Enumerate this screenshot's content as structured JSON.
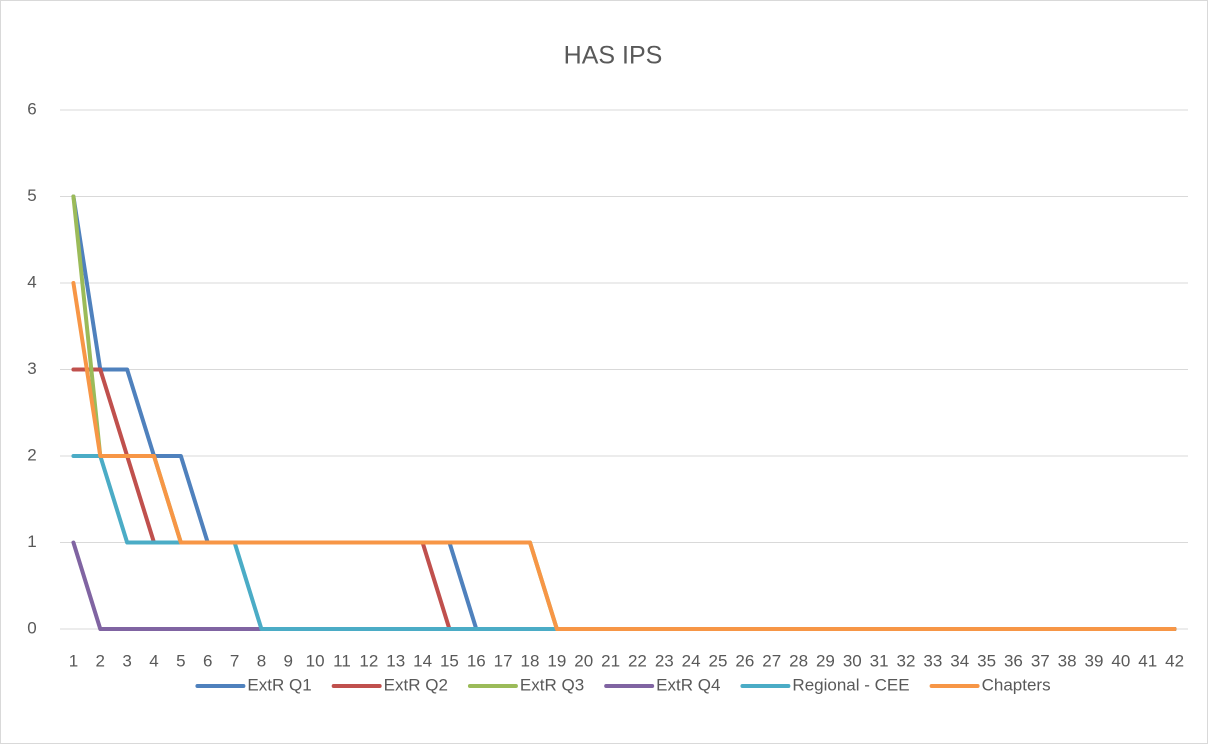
{
  "chart_data": {
    "type": "line",
    "title": "HAS IPS",
    "categories": [
      1,
      2,
      3,
      4,
      5,
      6,
      7,
      8,
      9,
      10,
      11,
      12,
      13,
      14,
      15,
      16,
      17,
      18,
      19,
      20,
      21,
      22,
      23,
      24,
      25,
      26,
      27,
      28,
      29,
      30,
      31,
      32,
      33,
      34,
      35,
      36,
      37,
      38,
      39,
      40,
      41,
      42
    ],
    "series": [
      {
        "name": "ExtR Q1",
        "color": "#4f81bd",
        "values": [
          5,
          3,
          3,
          2,
          2,
          1,
          1,
          1,
          1,
          1,
          1,
          1,
          1,
          1,
          1,
          0,
          0,
          0,
          0,
          0,
          0,
          0,
          0,
          0,
          0,
          0,
          0,
          0,
          0,
          0,
          0,
          0,
          0,
          0,
          0,
          0,
          0,
          0,
          0,
          0,
          0,
          0
        ]
      },
      {
        "name": "ExtR Q2",
        "color": "#c0504d",
        "values": [
          3,
          3,
          2,
          1,
          1,
          1,
          1,
          1,
          1,
          1,
          1,
          1,
          1,
          1,
          0,
          0,
          0,
          0,
          0,
          0,
          0,
          0,
          0,
          0,
          0,
          0,
          0,
          0,
          0,
          0,
          0,
          0,
          0,
          0,
          0,
          0,
          0,
          0,
          0,
          0,
          0,
          0
        ]
      },
      {
        "name": "ExtR Q3",
        "color": "#9bbb59",
        "values": [
          5,
          2,
          2,
          2,
          1,
          1,
          1,
          1,
          1,
          1,
          1,
          1,
          1,
          1,
          1,
          1,
          1,
          1,
          0,
          0,
          0,
          0,
          0,
          0,
          0,
          0,
          0,
          0,
          0,
          0,
          0,
          0,
          0,
          0,
          0,
          0,
          0,
          0,
          0,
          0,
          0,
          0
        ]
      },
      {
        "name": "ExtR Q4",
        "color": "#8064a2",
        "values": [
          1,
          0,
          0,
          0,
          0,
          0,
          0,
          0,
          0,
          0,
          0,
          0,
          0,
          0,
          0,
          0,
          0,
          0,
          0,
          0,
          0,
          0,
          0,
          0,
          0,
          0,
          0,
          0,
          0,
          0,
          0,
          0,
          0,
          0,
          0,
          0,
          0,
          0,
          0,
          0,
          0,
          0
        ]
      },
      {
        "name": "Regional - CEE",
        "color": "#4bacc6",
        "values": [
          2,
          2,
          1,
          1,
          1,
          1,
          1,
          0,
          0,
          0,
          0,
          0,
          0,
          0,
          0,
          0,
          0,
          0,
          0,
          0,
          0,
          0,
          0,
          0,
          0,
          0,
          0,
          0,
          0,
          0,
          0,
          0,
          0,
          0,
          0,
          0,
          0,
          0,
          0,
          0,
          0,
          0
        ]
      },
      {
        "name": "Chapters",
        "color": "#f79646",
        "values": [
          4,
          2,
          2,
          2,
          1,
          1,
          1,
          1,
          1,
          1,
          1,
          1,
          1,
          1,
          1,
          1,
          1,
          1,
          0,
          0,
          0,
          0,
          0,
          0,
          0,
          0,
          0,
          0,
          0,
          0,
          0,
          0,
          0,
          0,
          0,
          0,
          0,
          0,
          0,
          0,
          0,
          0
        ]
      }
    ],
    "ylim": [
      0,
      6
    ],
    "yticks": [
      0,
      1,
      2,
      3,
      4,
      5,
      6
    ],
    "grid": true,
    "legend": "bottom"
  }
}
